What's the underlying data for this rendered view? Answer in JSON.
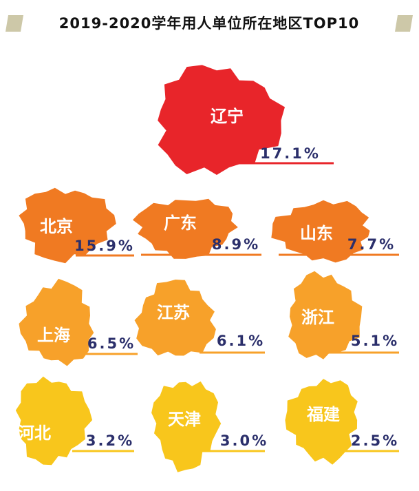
{
  "chart_data": {
    "type": "region-pictogram",
    "title": "2019-2020学年用人单位所在地区TOP10",
    "categories": [
      "辽宁",
      "北京",
      "广东",
      "山东",
      "上海",
      "江苏",
      "浙江",
      "河北",
      "天津",
      "福建"
    ],
    "values": [
      17.1,
      15.9,
      8.9,
      7.7,
      6.5,
      6.1,
      5.1,
      3.2,
      3.0,
      2.5
    ],
    "value_labels": [
      "17.1%",
      "15.9%",
      "8.9%",
      "7.7%",
      "6.5%",
      "6.1%",
      "5.1%",
      "3.2%",
      "3.0%",
      "2.5%"
    ],
    "colors": [
      "#e8252a",
      "#f07a22",
      "#f07a22",
      "#f07a22",
      "#f7a12a",
      "#f7a12a",
      "#f7a12a",
      "#f8c61c",
      "#f8c61c",
      "#f8c61c"
    ]
  }
}
